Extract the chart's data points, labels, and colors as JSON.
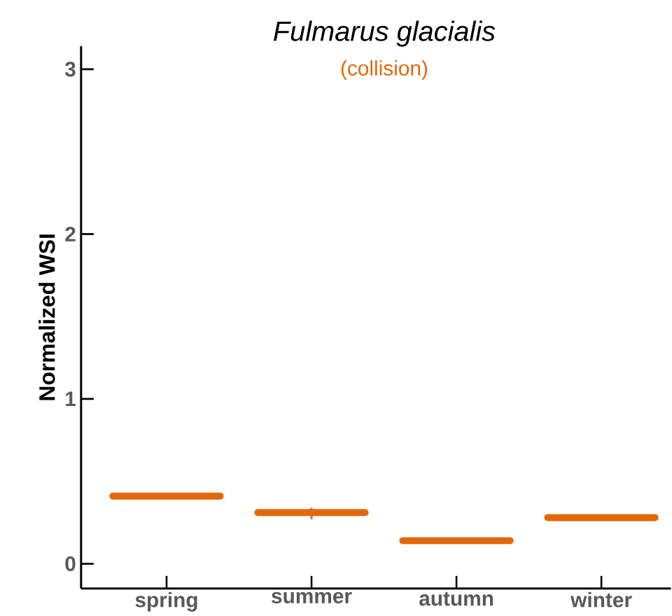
{
  "chart_data": {
    "type": "box",
    "title": "Fulmarus glacialis",
    "subtitle": "(collision)",
    "ylabel": "Normalized WSI",
    "categories": [
      "spring",
      "summer",
      "autumn",
      "winter"
    ],
    "series": [
      {
        "color": "#e3680c",
        "boxes": [
          {
            "low": 0.41,
            "q1": 0.41,
            "median": 0.41,
            "q3": 0.41,
            "high": 0.41
          },
          {
            "low": 0.27,
            "q1": 0.31,
            "median": 0.31,
            "q3": 0.31,
            "high": 0.34
          },
          {
            "low": 0.14,
            "q1": 0.14,
            "median": 0.14,
            "q3": 0.14,
            "high": 0.14
          },
          {
            "low": 0.28,
            "q1": 0.28,
            "median": 0.28,
            "q3": 0.28,
            "high": 0.28
          }
        ]
      }
    ],
    "ylim": [
      -0.15,
      3.14
    ],
    "yticks": [
      0,
      1,
      2,
      3
    ],
    "grid": false
  }
}
